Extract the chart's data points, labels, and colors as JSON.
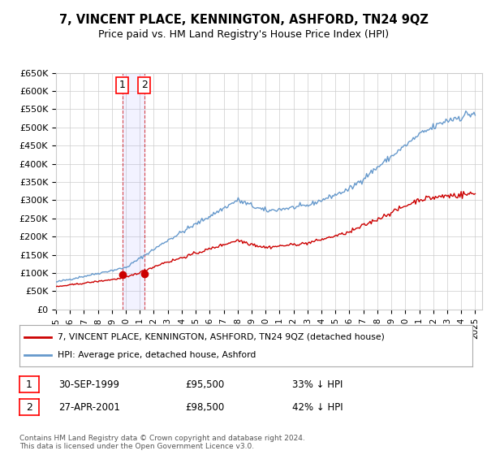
{
  "title": "7, VINCENT PLACE, KENNINGTON, ASHFORD, TN24 9QZ",
  "subtitle": "Price paid vs. HM Land Registry's House Price Index (HPI)",
  "xlabel": "",
  "ylabel": "",
  "ylim": [
    0,
    650000
  ],
  "yticks": [
    0,
    50000,
    100000,
    150000,
    200000,
    250000,
    300000,
    350000,
    400000,
    450000,
    500000,
    550000,
    600000,
    650000
  ],
  "background_color": "#ffffff",
  "grid_color": "#cccccc",
  "hpi_color": "#6699cc",
  "price_color": "#cc0000",
  "sale1_date": 1999.75,
  "sale1_price": 95500,
  "sale1_label": "1",
  "sale2_date": 2001.32,
  "sale2_price": 98500,
  "sale2_label": "2",
  "legend_line1": "7, VINCENT PLACE, KENNINGTON, ASHFORD, TN24 9QZ (detached house)",
  "legend_line2": "HPI: Average price, detached house, Ashford",
  "table_row1": [
    "1",
    "30-SEP-1999",
    "£95,500",
    "33% ↓ HPI"
  ],
  "table_row2": [
    "2",
    "27-APR-2001",
    "£98,500",
    "42% ↓ HPI"
  ],
  "footnote": "Contains HM Land Registry data © Crown copyright and database right 2024.\nThis data is licensed under the Open Government Licence v3.0.",
  "xmin": 1995.0,
  "xmax": 2025.5,
  "shade_x1": 1999.5,
  "shade_x2": 2001.5
}
